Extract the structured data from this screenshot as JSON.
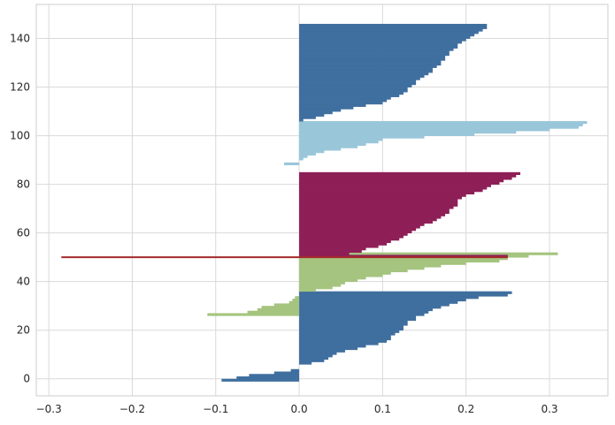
{
  "chart_data": {
    "type": "silhouette",
    "title": "",
    "xlabel": "",
    "ylabel": "",
    "xlim": [
      -0.315,
      0.37
    ],
    "ylim": [
      -7,
      154
    ],
    "grid": true,
    "x_ticks": [
      -0.3,
      -0.2,
      -0.1,
      0.0,
      0.1,
      0.2,
      0.3
    ],
    "y_ticks": [
      0,
      20,
      40,
      60,
      80,
      100,
      120,
      140
    ],
    "x_tick_labels": [
      "−0.3",
      "−0.2",
      "−0.1",
      "0.0",
      "0.1",
      "0.2",
      "0.3"
    ],
    "y_tick_labels": [
      "0",
      "20",
      "40",
      "60",
      "80",
      "100",
      "120",
      "140"
    ],
    "mean_silhouette_line": {
      "y": 50,
      "x_range": [
        -0.285,
        0.25
      ],
      "color": "#a52a2a"
    },
    "series": [
      {
        "cluster": 0,
        "color": "#3f6f9f",
        "y_start": -1,
        "values": [
          -0.093,
          -0.075,
          -0.06,
          -0.03,
          -0.01,
          0.0,
          0.0,
          0.015,
          0.03,
          0.035,
          0.04,
          0.045,
          0.055,
          0.07,
          0.08,
          0.095,
          0.105,
          0.11,
          0.11,
          0.115,
          0.12,
          0.125,
          0.125,
          0.13,
          0.13,
          0.14,
          0.14,
          0.15,
          0.155,
          0.16,
          0.17,
          0.18,
          0.19,
          0.2,
          0.215,
          0.25,
          0.255
        ]
      },
      {
        "cluster": 1,
        "color": "#a5c47f",
        "y_start": 26,
        "values": [
          -0.11,
          -0.062,
          -0.05,
          -0.045,
          -0.03,
          -0.012,
          -0.008,
          -0.005,
          0.0,
          0.0,
          0.02,
          0.04,
          0.05,
          0.055,
          0.07,
          0.08,
          0.1,
          0.11,
          0.13,
          0.15,
          0.17,
          0.2,
          0.24,
          0.25,
          0.275,
          0.31
        ]
      },
      {
        "cluster": 2,
        "color": "#8e1f57",
        "y_start": 50,
        "values": [
          0.25,
          0.06,
          0.075,
          0.08,
          0.095,
          0.105,
          0.11,
          0.12,
          0.125,
          0.13,
          0.135,
          0.14,
          0.145,
          0.15,
          0.16,
          0.165,
          0.17,
          0.175,
          0.18,
          0.18,
          0.185,
          0.19,
          0.19,
          0.19,
          0.195,
          0.2,
          0.21,
          0.22,
          0.225,
          0.23,
          0.24,
          0.245,
          0.255,
          0.26,
          0.265
        ]
      },
      {
        "cluster": 3,
        "color": "#9ac6da",
        "y_start": 88,
        "values": [
          -0.018,
          0.0,
          0.005,
          0.01,
          0.02,
          0.03,
          0.05,
          0.07,
          0.08,
          0.095,
          0.1,
          0.15,
          0.21,
          0.26,
          0.3,
          0.335,
          0.34,
          0.345
        ]
      },
      {
        "cluster": 4,
        "color": "#3f6f9f",
        "y_start": 105,
        "values": [
          0.0,
          0.005,
          0.02,
          0.03,
          0.04,
          0.05,
          0.065,
          0.08,
          0.1,
          0.105,
          0.11,
          0.12,
          0.125,
          0.13,
          0.13,
          0.135,
          0.14,
          0.14,
          0.145,
          0.15,
          0.155,
          0.16,
          0.16,
          0.165,
          0.17,
          0.17,
          0.175,
          0.175,
          0.18,
          0.18,
          0.185,
          0.19,
          0.19,
          0.195,
          0.2,
          0.205,
          0.21,
          0.215,
          0.22,
          0.225,
          0.225
        ]
      }
    ]
  }
}
